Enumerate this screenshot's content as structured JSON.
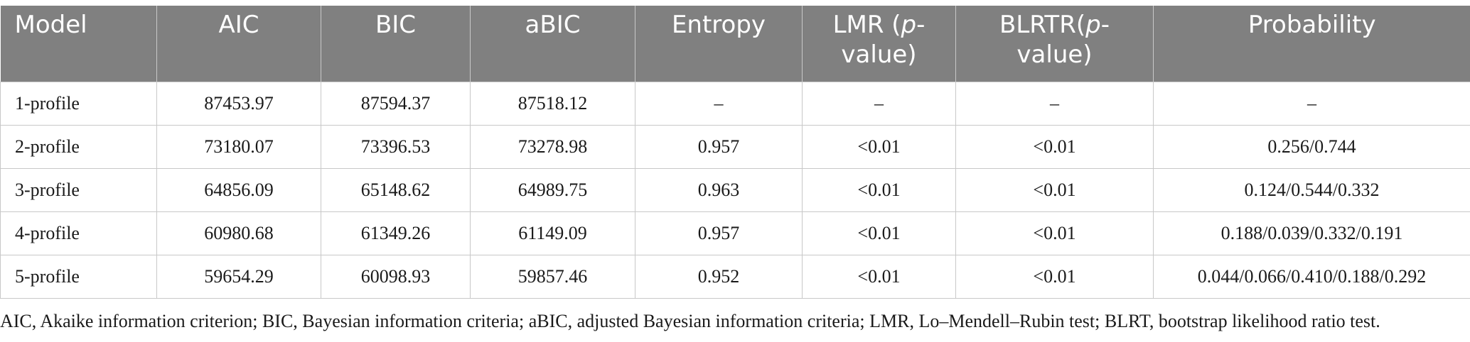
{
  "table": {
    "headers": [
      {
        "text": "Model"
      },
      {
        "text": "AIC"
      },
      {
        "text": "BIC"
      },
      {
        "text": "aBIC"
      },
      {
        "text": "Entropy"
      },
      {
        "pre": "LMR (",
        "italic": "p",
        "post": "-value)"
      },
      {
        "pre": "BLRTR(",
        "italic": "p",
        "post": "-value)"
      },
      {
        "text": "Probability"
      }
    ],
    "rows": [
      [
        "1-profile",
        "87453.97",
        "87594.37",
        "87518.12",
        "–",
        "–",
        "–",
        "–"
      ],
      [
        "2-profile",
        "73180.07",
        "73396.53",
        "73278.98",
        "0.957",
        "<0.01",
        "<0.01",
        "0.256/0.744"
      ],
      [
        "3-profile",
        "64856.09",
        "65148.62",
        "64989.75",
        "0.963",
        "<0.01",
        "<0.01",
        "0.124/0.544/0.332"
      ],
      [
        "4-profile",
        "60980.68",
        "61349.26",
        "61149.09",
        "0.957",
        "<0.01",
        "<0.01",
        "0.188/0.039/0.332/0.191"
      ],
      [
        "5-profile",
        "59654.29",
        "60098.93",
        "59857.46",
        "0.952",
        "<0.01",
        "<0.01",
        "0.044/0.066/0.410/0.188/0.292"
      ]
    ]
  },
  "footnote": "AIC, Akaike information criterion; BIC, Bayesian information criteria; aBIC, adjusted Bayesian information criteria; LMR, Lo–Mendell–Rubin test; BLRT, bootstrap likelihood ratio test.",
  "colors": {
    "header_bg": "#808080",
    "header_text": "#ffffff",
    "border": "#c8c8c8"
  }
}
